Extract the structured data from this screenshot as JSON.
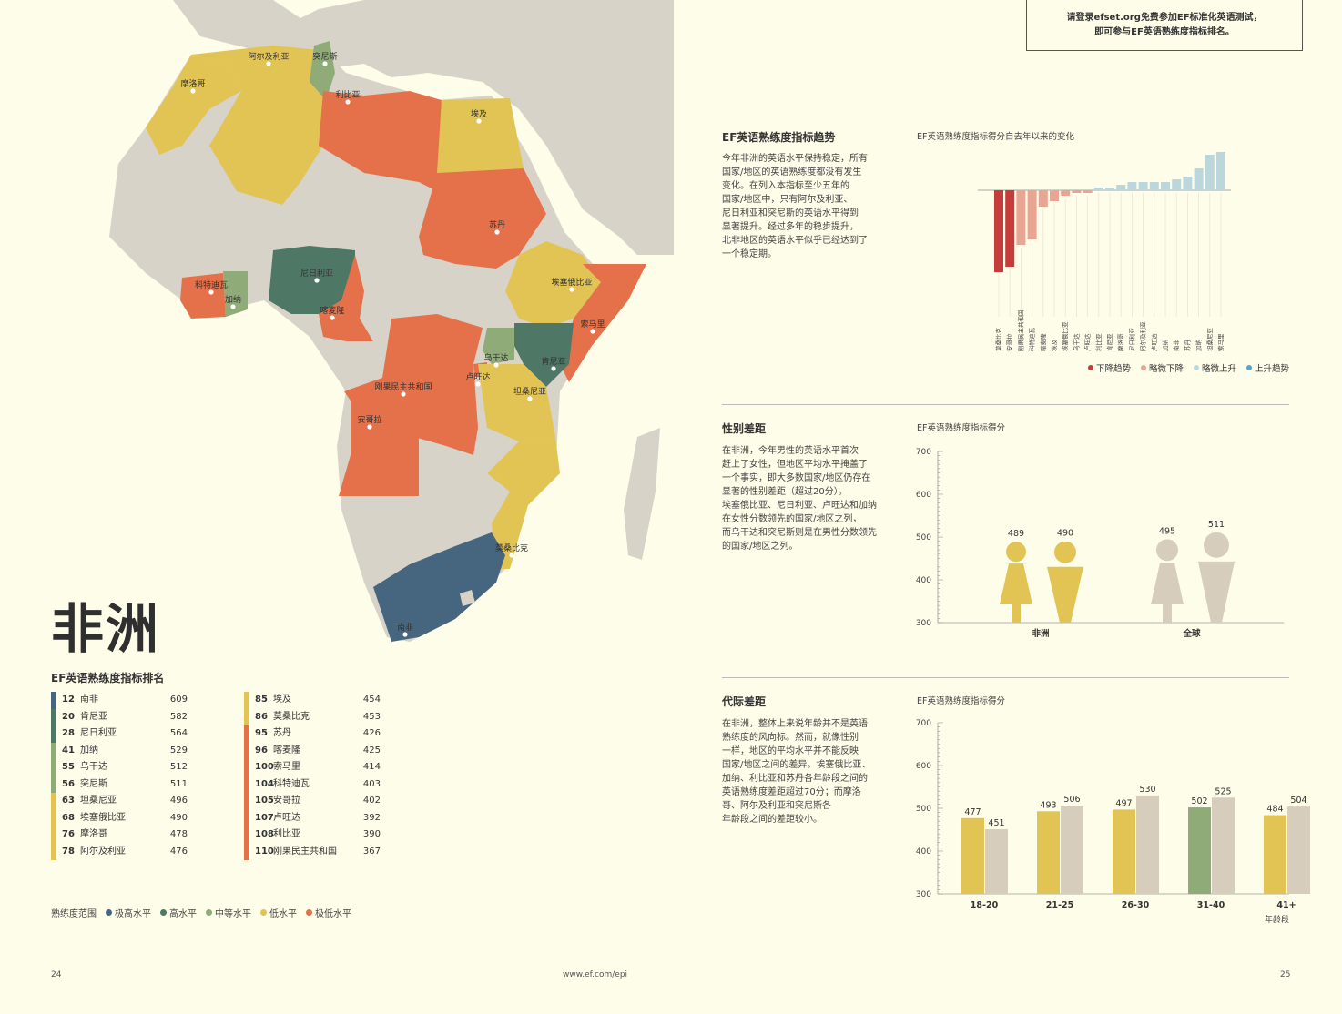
{
  "map": {
    "labels": [
      "阿尔及利亚",
      "突尼斯",
      "摩洛哥",
      "利比亚",
      "埃及",
      "苏丹",
      "埃塞俄比亚",
      "索马里",
      "尼日利亚",
      "加纳",
      "科特迪瓦",
      "喀麦隆",
      "乌干达",
      "肯尼亚",
      "卢旺达",
      "坦桑尼亚",
      "刚果民主共和国",
      "安哥拉",
      "莫桑比克",
      "南非"
    ],
    "colors": {
      "very_high": "#46667f",
      "high": "#4e7766",
      "moderate": "#8fac78",
      "low": "#e2c455",
      "very_low": "#e5714a",
      "no_data": "#d7d3c8",
      "sea": "#fefde9"
    }
  },
  "title": "非洲",
  "ranking": {
    "title": "EF英语熟练度指标排名",
    "rows": [
      {
        "rank": "12",
        "name": "南非",
        "score": "609",
        "level": "very_high"
      },
      {
        "rank": "20",
        "name": "肯尼亚",
        "score": "582",
        "level": "high"
      },
      {
        "rank": "28",
        "name": "尼日利亚",
        "score": "564",
        "level": "high"
      },
      {
        "rank": "41",
        "name": "加纳",
        "score": "529",
        "level": "moderate"
      },
      {
        "rank": "55",
        "name": "乌干达",
        "score": "512",
        "level": "moderate"
      },
      {
        "rank": "56",
        "name": "突尼斯",
        "score": "511",
        "level": "moderate"
      },
      {
        "rank": "63",
        "name": "坦桑尼亚",
        "score": "496",
        "level": "low"
      },
      {
        "rank": "68",
        "name": "埃塞俄比亚",
        "score": "490",
        "level": "low"
      },
      {
        "rank": "76",
        "name": "摩洛哥",
        "score": "478",
        "level": "low"
      },
      {
        "rank": "78",
        "name": "阿尔及利亚",
        "score": "476",
        "level": "low"
      },
      {
        "rank": "85",
        "name": "埃及",
        "score": "454",
        "level": "low"
      },
      {
        "rank": "86",
        "name": "莫桑比克",
        "score": "453",
        "level": "low"
      },
      {
        "rank": "95",
        "name": "苏丹",
        "score": "426",
        "level": "very_low"
      },
      {
        "rank": "96",
        "name": "喀麦隆",
        "score": "425",
        "level": "very_low"
      },
      {
        "rank": "100",
        "name": "索马里",
        "score": "414",
        "level": "very_low"
      },
      {
        "rank": "104",
        "name": "科特迪瓦",
        "score": "403",
        "level": "very_low"
      },
      {
        "rank": "105",
        "name": "安哥拉",
        "score": "402",
        "level": "very_low"
      },
      {
        "rank": "107",
        "name": "卢旺达",
        "score": "392",
        "level": "very_low"
      },
      {
        "rank": "108",
        "name": "利比亚",
        "score": "390",
        "level": "very_low"
      },
      {
        "rank": "110",
        "name": "刚果民主共和国",
        "score": "367",
        "level": "very_low"
      }
    ]
  },
  "legend": {
    "label": "熟练度范围",
    "items": [
      {
        "name": "极高水平",
        "color": "#46667f"
      },
      {
        "name": "高水平",
        "color": "#4e7766"
      },
      {
        "name": "中等水平",
        "color": "#8fac78"
      },
      {
        "name": "低水平",
        "color": "#e2c455"
      },
      {
        "name": "极低水平",
        "color": "#e5714a"
      }
    ]
  },
  "footer": {
    "left_page": "24",
    "url": "www.ef.com/epi",
    "right_page": "25"
  },
  "cta": {
    "line1": "请登录efset.org免费参加EF标准化英语测试，",
    "line2": "即可参与EF英语熟练度指标排名。"
  },
  "sections": {
    "trend": {
      "title": "EF英语熟练度指标趋势",
      "body": [
        "今年非洲的英语水平保持稳定，所有",
        "国家/地区的英语熟练度都没有发生",
        "变化。在列入本指标至少五年的",
        "国家/地区中，只有阿尔及利亚、",
        "尼日利亚和突尼斯的英语水平得到",
        "显著提升。经过多年的稳步提升，",
        "北非地区的英语水平似乎已经达到了",
        "一个稳定期。"
      ]
    },
    "gender": {
      "title": "性别差距",
      "body": [
        "在非洲，今年男性的英语水平首次",
        "赶上了女性，但地区平均水平掩盖了",
        "一个事实，即大多数国家/地区仍存在",
        "显著的性别差距（超过20分）。",
        "埃塞俄比亚、尼日利亚、卢旺达和加纳",
        "在女性分数领先的国家/地区之列，",
        "而乌干达和突尼斯则是在男性分数领先",
        "的国家/地区之列。"
      ]
    },
    "age": {
      "title": "代际差距",
      "body": [
        "在非洲，整体上来说年龄并不是英语",
        "熟练度的风向标。然而，就像性别",
        "一样，地区的平均水平并不能反映",
        "国家/地区之间的差异。埃塞俄比亚、",
        "加纳、利比亚和苏丹各年龄段之间的",
        "英语熟练度差距超过70分；而摩洛",
        "哥、阿尔及利亚和突尼斯各",
        "年龄段之间的差距较小。"
      ]
    }
  },
  "chart_data": [
    {
      "type": "bar",
      "title": "EF英语熟练度指标得分自去年以来的变化",
      "categories": [
        "莫桑比克",
        "安哥拉",
        "刚果民主共和国",
        "科特迪瓦",
        "喀麦隆",
        "埃及",
        "埃塞俄比亚",
        "乌干达",
        "卢旺达",
        "利比亚",
        "肯尼亚",
        "摩洛哥",
        "尼日利亚",
        "阿尔及利亚",
        "卢旺达",
        "加纳",
        "南非",
        "苏丹",
        "加纳",
        "坦桑尼亚",
        "索马里"
      ],
      "values": [
        -15,
        -14,
        -10,
        -9,
        -3,
        -2,
        -1,
        -0.5,
        -0.5,
        0.5,
        0.5,
        1,
        1.5,
        1.5,
        1.5,
        1.5,
        2,
        2.5,
        4,
        6.5,
        7
      ],
      "colors": [
        "#c63c3a",
        "#c63c3a",
        "#e9a592",
        "#e9a592",
        "#e9a592",
        "#e9a592",
        "#e9a592",
        "#e9a592",
        "#e9a592",
        "#bcd7dc",
        "#bcd7dc",
        "#bcd7dc",
        "#bcd7dc",
        "#bcd7dc",
        "#bcd7dc",
        "#bcd7dc",
        "#bcd7dc",
        "#bcd7dc",
        "#bcd7dc",
        "#bcd7dc",
        "#bcd7dc"
      ],
      "legend": [
        {
          "name": "下降趋势",
          "color": "#c63c3a"
        },
        {
          "name": "略微下降",
          "color": "#e9a592"
        },
        {
          "name": "略微上升",
          "color": "#bcd7dc"
        },
        {
          "name": "上升趋势",
          "color": "#5aa3c8"
        }
      ]
    },
    {
      "type": "bar",
      "title": "EF英语熟练度指标得分",
      "categories": [
        "非洲",
        "全球"
      ],
      "series": [
        {
          "values": [
            489,
            495
          ]
        },
        {
          "values": [
            490,
            511
          ]
        }
      ],
      "colors": {
        "africa": "#e2c455",
        "global": "#d7cdbd"
      },
      "ylim": [
        300,
        700
      ],
      "yticks": [
        300,
        400,
        500,
        600,
        700
      ]
    },
    {
      "type": "bar",
      "title": "EF英语熟练度指标得分",
      "categories": [
        "18-20",
        "21-25",
        "26-30",
        "31-40",
        "41+"
      ],
      "series": [
        {
          "values": [
            477,
            493,
            497,
            502,
            484
          ]
        },
        {
          "values": [
            451,
            506,
            530,
            525,
            504
          ]
        }
      ],
      "first_colors": [
        "#e2c455",
        "#e2c455",
        "#e2c455",
        "#8fac78",
        "#e2c455"
      ],
      "second_color": "#d7cdbd",
      "xlabel": "年龄段",
      "ylim": [
        300,
        700
      ],
      "yticks": [
        300,
        400,
        500,
        600,
        700
      ]
    }
  ]
}
